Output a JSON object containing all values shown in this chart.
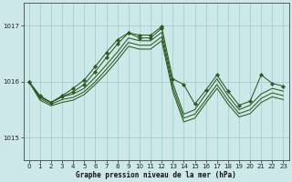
{
  "title": "Graphe pression niveau de la mer (hPa)",
  "xlim": [
    -0.5,
    23.5
  ],
  "ylim": [
    1014.6,
    1017.4
  ],
  "yticks": [
    1015,
    1016,
    1017
  ],
  "xticks": [
    0,
    1,
    2,
    3,
    4,
    5,
    6,
    7,
    8,
    9,
    10,
    11,
    12,
    13,
    14,
    15,
    16,
    17,
    18,
    19,
    20,
    21,
    22,
    23
  ],
  "background_color": "#cce8e8",
  "line_color": "#2d5a1e",
  "grid_color": "#99cccc",
  "figsize": [
    3.2,
    2.0
  ],
  "dpi": 100,
  "line1_x": [
    0,
    1,
    2,
    3,
    4,
    5,
    6,
    7,
    8,
    9,
    10,
    11,
    12,
    13,
    14,
    15,
    16,
    17,
    18,
    19,
    20,
    21,
    22,
    23
  ],
  "line1_y": [
    1016.0,
    1015.75,
    1015.63,
    1015.73,
    1015.82,
    1015.95,
    1016.18,
    1016.43,
    1016.67,
    1016.87,
    1016.83,
    1016.83,
    1016.98,
    1016.05,
    1015.95,
    1015.6,
    1015.85,
    1016.12,
    1015.83,
    1015.58,
    1015.65,
    1016.12,
    1015.97,
    1015.92
  ],
  "line2_x": [
    0,
    1,
    2,
    3,
    4,
    5,
    6,
    7,
    8,
    9,
    10,
    11,
    12
  ],
  "line2_y": [
    1016.0,
    1015.73,
    1015.63,
    1015.75,
    1015.88,
    1016.03,
    1016.27,
    1016.52,
    1016.75,
    1016.87,
    1016.78,
    1016.78,
    1016.95
  ],
  "line3_x": [
    0,
    1,
    2,
    3,
    4,
    5,
    6,
    7,
    8,
    9,
    10,
    11,
    12,
    13,
    14,
    15,
    16,
    17,
    18,
    19,
    20,
    21,
    22,
    23
  ],
  "line3_y": [
    1016.0,
    1015.73,
    1015.63,
    1015.73,
    1015.78,
    1015.88,
    1016.08,
    1016.3,
    1016.53,
    1016.78,
    1016.73,
    1016.73,
    1016.88,
    1015.98,
    1015.42,
    1015.5,
    1015.78,
    1016.05,
    1015.75,
    1015.5,
    1015.58,
    1015.78,
    1015.88,
    1015.83
  ],
  "line4_x": [
    0,
    1,
    2,
    3,
    4,
    5,
    6,
    7,
    8,
    9,
    10,
    11,
    12,
    13,
    14,
    15,
    16,
    17,
    18,
    19,
    20,
    21,
    22,
    23
  ],
  "line4_y": [
    1016.0,
    1015.7,
    1015.6,
    1015.68,
    1015.72,
    1015.82,
    1016.0,
    1016.22,
    1016.45,
    1016.7,
    1016.65,
    1016.65,
    1016.8,
    1015.9,
    1015.35,
    1015.42,
    1015.68,
    1015.95,
    1015.67,
    1015.43,
    1015.5,
    1015.7,
    1015.8,
    1015.75
  ],
  "line5_x": [
    0,
    1,
    2,
    3,
    4,
    5,
    6,
    7,
    8,
    9,
    10,
    11,
    12,
    13,
    14,
    15,
    16,
    17,
    18,
    19,
    20,
    21,
    22,
    23
  ],
  "line5_y": [
    1016.0,
    1015.67,
    1015.57,
    1015.63,
    1015.67,
    1015.77,
    1015.95,
    1016.15,
    1016.38,
    1016.63,
    1016.58,
    1016.58,
    1016.73,
    1015.83,
    1015.28,
    1015.35,
    1015.62,
    1015.88,
    1015.6,
    1015.37,
    1015.43,
    1015.63,
    1015.73,
    1015.68
  ]
}
